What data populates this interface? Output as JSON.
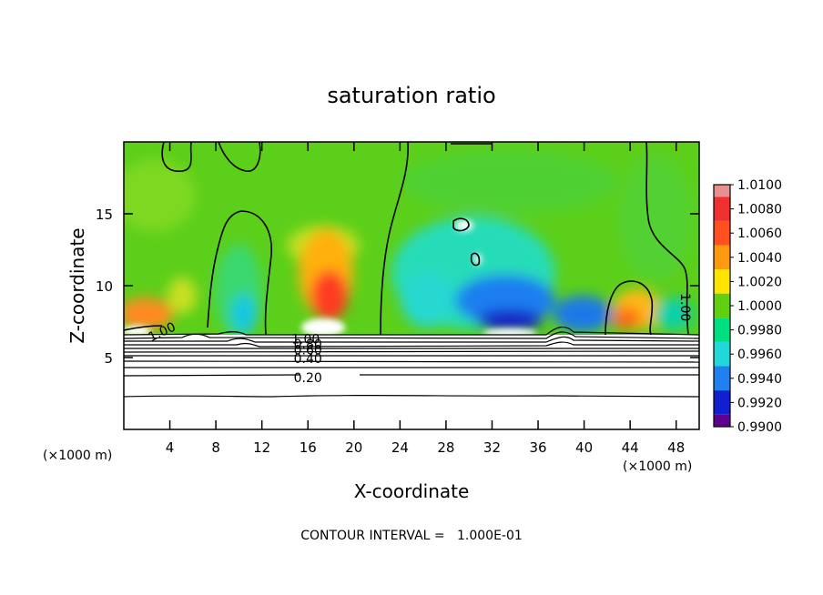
{
  "chart_data": {
    "type": "heatmap",
    "title": "saturation ratio",
    "xlabel": "X-coordinate",
    "ylabel": "Z-coordinate",
    "x_units_note": "(×1000 m)",
    "xlim": [
      0,
      50
    ],
    "ylim": [
      0,
      20
    ],
    "x_ticks": [
      4,
      8,
      12,
      16,
      20,
      24,
      28,
      32,
      36,
      40,
      44,
      48
    ],
    "y_ticks": [
      5,
      10,
      15
    ],
    "colorbar": {
      "ticks": [
        "1.0100",
        "1.0080",
        "1.0060",
        "1.0040",
        "1.0020",
        "1.0000",
        "0.9980",
        "0.9960",
        "0.9940",
        "0.9920",
        "0.9900"
      ],
      "colors": [
        "#e89090",
        "#f03030",
        "#ff5020",
        "#ff9a10",
        "#ffe400",
        "#60d010",
        "#00e080",
        "#20d8d8",
        "#2080f0",
        "#1020d0",
        "#600090"
      ]
    },
    "contour_labels": [
      {
        "text": "1.00",
        "x": 3.3,
        "z": 6.8
      },
      {
        "text": "1.00",
        "x": 15.8,
        "z": 6.3
      },
      {
        "text": "0.80",
        "x": 16.0,
        "z": 5.95
      },
      {
        "text": "0.60",
        "x": 16.0,
        "z": 5.55
      },
      {
        "text": "0.40",
        "x": 16.0,
        "z": 4.95
      },
      {
        "text": "0.20",
        "x": 16.0,
        "z": 3.6
      },
      {
        "text": "1.00",
        "x": 48.8,
        "z": 8.5
      }
    ],
    "contour_interval_text": "CONTOUR INTERVAL =   1.000E-01"
  }
}
